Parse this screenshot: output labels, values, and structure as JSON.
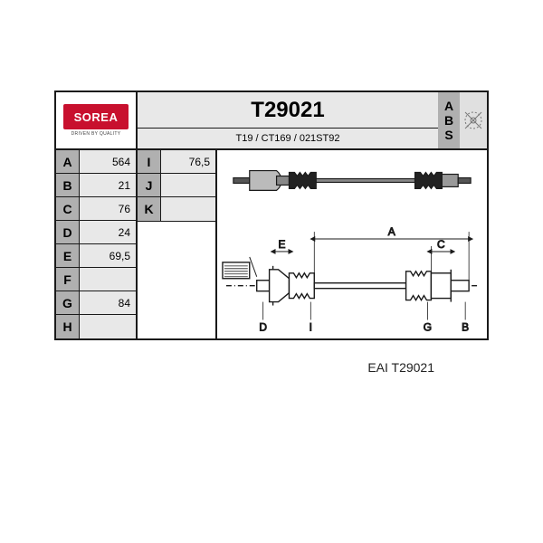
{
  "brand": {
    "name": "SOREA",
    "subline": "DRIVEN BY QUALITY"
  },
  "part_number": "T29021",
  "cross_refs": "T19 / CT169 / 021ST92",
  "abs_label": "ABS",
  "specs_col1": [
    {
      "label": "A",
      "value": "564"
    },
    {
      "label": "B",
      "value": "21"
    },
    {
      "label": "C",
      "value": "76"
    },
    {
      "label": "D",
      "value": "24"
    },
    {
      "label": "E",
      "value": "69,5"
    },
    {
      "label": "F",
      "value": ""
    },
    {
      "label": "G",
      "value": "84"
    },
    {
      "label": "H",
      "value": ""
    }
  ],
  "specs_col2": [
    {
      "label": "I",
      "value": "76,5"
    },
    {
      "label": "J",
      "value": ""
    },
    {
      "label": "K",
      "value": ""
    }
  ],
  "caption": "EAI T29021",
  "diagram": {
    "type": "schematic",
    "stroke": "#1a1a1a",
    "dim_labels": [
      "A",
      "B",
      "C",
      "D",
      "E",
      "G",
      "I"
    ],
    "fontsize": 12
  },
  "colors": {
    "border": "#1a1a1a",
    "label_bg": "#b0b0b0",
    "value_bg": "#e8e8e8",
    "brand_red": "#c8102e",
    "white": "#ffffff"
  }
}
